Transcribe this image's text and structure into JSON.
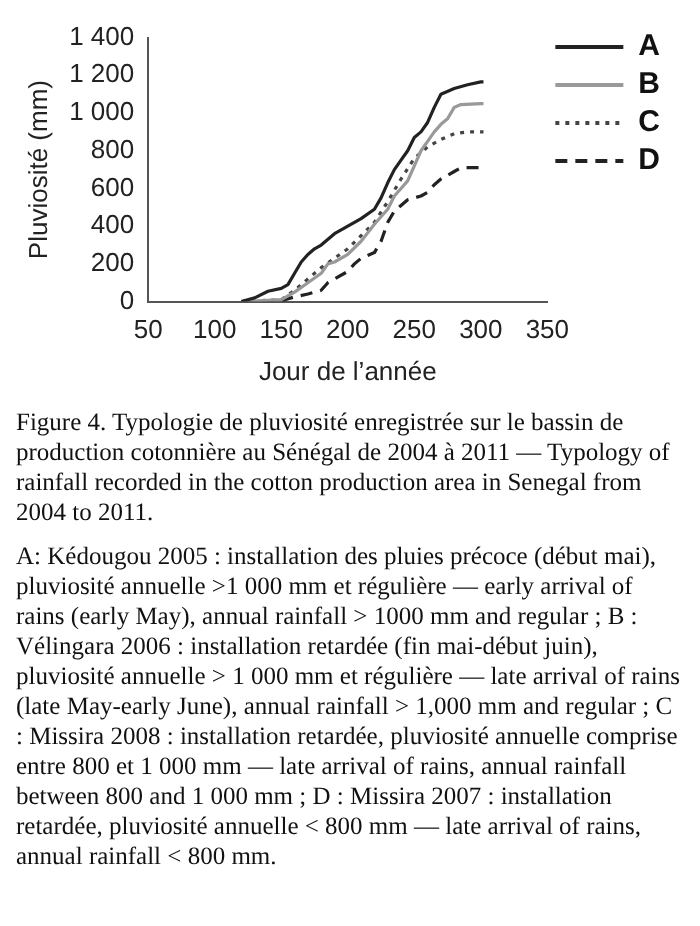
{
  "chart_data": {
    "type": "line",
    "xlabel": "Jour de l’année",
    "ylabel": "Pluviosité (mm)",
    "xlim": [
      50,
      350
    ],
    "xticks": [
      50,
      100,
      150,
      200,
      250,
      300,
      350
    ],
    "ylim": [
      0,
      1400
    ],
    "yticks": [
      0,
      200,
      400,
      600,
      800,
      {
        "value": 1000,
        "label": "1 000"
      },
      {
        "value": 1200,
        "label": "1 200"
      },
      {
        "value": 1400,
        "label": "1 400"
      }
    ],
    "grid": false,
    "legend": "right",
    "marker": "none",
    "series": [
      {
        "name": "A",
        "color": "#222222",
        "line_style": "solid",
        "x": [
          120,
          130,
          140,
          150,
          155,
          160,
          165,
          170,
          175,
          180,
          190,
          195,
          200,
          205,
          210,
          220,
          225,
          230,
          235,
          240,
          245,
          250,
          255,
          260,
          265,
          270,
          280,
          290,
          300,
          302
        ],
        "values": [
          0,
          20,
          55,
          70,
          90,
          150,
          210,
          250,
          280,
          300,
          360,
          380,
          400,
          420,
          440,
          490,
          550,
          630,
          700,
          750,
          800,
          870,
          900,
          950,
          1030,
          1100,
          1130,
          1150,
          1165,
          1165
        ]
      },
      {
        "name": "B",
        "color": "#999999",
        "line_style": "solid",
        "x": [
          120,
          150,
          160,
          170,
          180,
          185,
          190,
          200,
          210,
          220,
          230,
          235,
          240,
          245,
          250,
          255,
          260,
          265,
          270,
          275,
          280,
          285,
          300,
          302
        ],
        "values": [
          0,
          10,
          50,
          100,
          150,
          200,
          210,
          250,
          320,
          410,
          490,
          560,
          600,
          640,
          720,
          800,
          850,
          900,
          940,
          970,
          1030,
          1045,
          1050,
          1050
        ]
      },
      {
        "name": "C",
        "color": "#444444",
        "line_style": "dotted",
        "x": [
          120,
          150,
          160,
          170,
          180,
          190,
          200,
          210,
          220,
          230,
          240,
          250,
          260,
          270,
          280,
          290,
          302
        ],
        "values": [
          0,
          10,
          60,
          120,
          180,
          230,
          280,
          350,
          420,
          530,
          650,
          760,
          820,
          860,
          890,
          900,
          900
        ]
      },
      {
        "name": "D",
        "color": "#222222",
        "line_style": "dashed",
        "x": [
          120,
          150,
          160,
          170,
          180,
          185,
          190,
          200,
          205,
          210,
          220,
          225,
          230,
          235,
          240,
          245,
          255,
          260,
          265,
          270,
          280,
          285,
          302
        ],
        "values": [
          0,
          5,
          25,
          40,
          60,
          100,
          120,
          160,
          200,
          230,
          260,
          320,
          420,
          480,
          510,
          540,
          560,
          580,
          620,
          650,
          690,
          710,
          710
        ]
      }
    ],
    "annotations": [
      "Figure 4. Typologie de pluviosité enregistrée sur le bassin de production cotonnière au Sénégal de 2004 à 2011 — Typology of rainfall recorded in the cotton production area in Senegal from 2004 to 2011.",
      "A: Kédougou 2005 : installation des pluies précoce (début mai), pluviosité annuelle >1 000 mm et régulière — early arrival of rains (early May), annual rainfall > 1000 mm and regular ; B : Vélingara 2006 : installation retardée (fin mai-début juin), pluviosité annuelle > 1 000 mm et régulière — late arrival of rains (late May-early June), annual rainfall > 1,000 mm and regular ; C : Missira 2008 : installation retardée, pluviosité annuelle comprise entre 800 et 1 000 mm — late arrival of rains, annual rainfall between 800 and 1 000 mm ; D : Missira 2007 : installation retardée, pluviosité annuelle < 800 mm — late arrival of rains, annual rainfall < 800 mm."
    ]
  }
}
